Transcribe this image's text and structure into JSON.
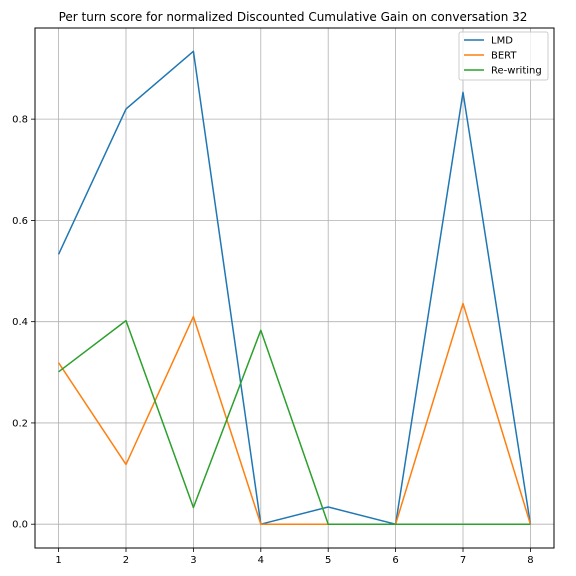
{
  "chart_data": {
    "type": "line",
    "title": "Per turn score for normalized Discounted Cumulative Gain on conversation 32",
    "xlabel": "",
    "ylabel": "",
    "x": [
      1,
      2,
      3,
      4,
      5,
      6,
      7,
      8
    ],
    "xlim": [
      0.65,
      8.35
    ],
    "ylim": [
      -0.047,
      0.98
    ],
    "xticks": [
      1,
      2,
      3,
      4,
      5,
      6,
      7,
      8
    ],
    "yticks": [
      0.0,
      0.2,
      0.4,
      0.6,
      0.8
    ],
    "ytick_labels": [
      "0.0",
      "0.2",
      "0.4",
      "0.6",
      "0.8"
    ],
    "grid": true,
    "legend_position": "top-right",
    "series": [
      {
        "name": "LMD",
        "color": "#1f77b4",
        "values": [
          0.533,
          0.82,
          0.934,
          0.0,
          0.034,
          0.0,
          0.853,
          0.0
        ]
      },
      {
        "name": "BERT",
        "color": "#ff7f0e",
        "values": [
          0.319,
          0.118,
          0.41,
          0.0,
          0.0,
          0.0,
          0.436,
          0.0
        ]
      },
      {
        "name": "Re-writing",
        "color": "#2ca02c",
        "values": [
          0.301,
          0.402,
          0.033,
          0.383,
          0.0,
          0.0,
          0.0,
          0.0
        ]
      }
    ]
  }
}
